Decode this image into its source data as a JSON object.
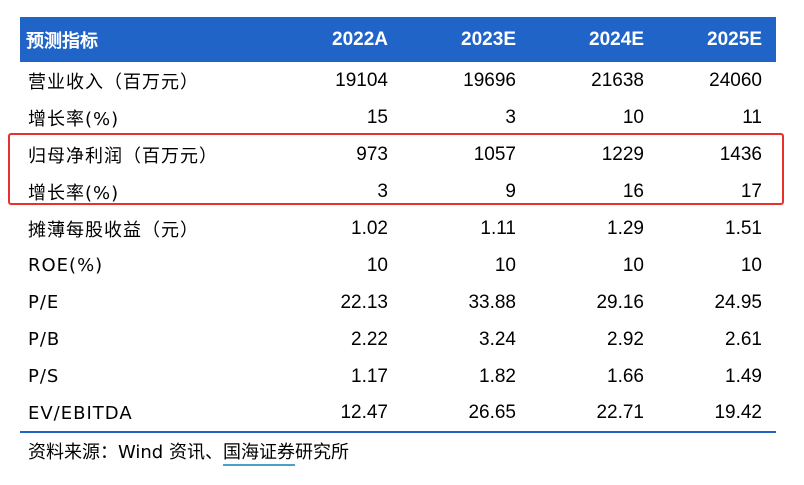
{
  "table": {
    "header": {
      "label": "预测指标",
      "years": [
        "2022A",
        "2023E",
        "2024E",
        "2025E"
      ]
    },
    "rows": [
      {
        "label": "营业收入（百万元）",
        "values": [
          "19104",
          "19696",
          "21638",
          "24060"
        ]
      },
      {
        "label": "增长率(%)",
        "values": [
          "15",
          "3",
          "10",
          "11"
        ]
      },
      {
        "label": "归母净利润（百万元）",
        "values": [
          "973",
          "1057",
          "1229",
          "1436"
        ]
      },
      {
        "label": "增长率(%)",
        "values": [
          "3",
          "9",
          "16",
          "17"
        ]
      },
      {
        "label": "摊薄每股收益（元）",
        "values": [
          "1.02",
          "1.11",
          "1.29",
          "1.51"
        ]
      },
      {
        "label": "ROE(%)",
        "values": [
          "10",
          "10",
          "10",
          "10"
        ]
      },
      {
        "label": "P/E",
        "values": [
          "22.13",
          "33.88",
          "29.16",
          "24.95"
        ]
      },
      {
        "label": "P/B",
        "values": [
          "2.22",
          "3.24",
          "2.92",
          "2.61"
        ]
      },
      {
        "label": "P/S",
        "values": [
          "1.17",
          "1.82",
          "1.66",
          "1.49"
        ]
      },
      {
        "label": "EV/EBITDA",
        "values": [
          "12.47",
          "26.65",
          "22.71",
          "19.42"
        ]
      }
    ]
  },
  "source": {
    "prefix": "资料来源：Wind 资讯、",
    "underlined": "国海证券",
    "suffix": "研究所"
  },
  "colors": {
    "header_bg": "#1f64c6",
    "highlight_border": "#e8302d",
    "underline": "#4aa0c8"
  }
}
